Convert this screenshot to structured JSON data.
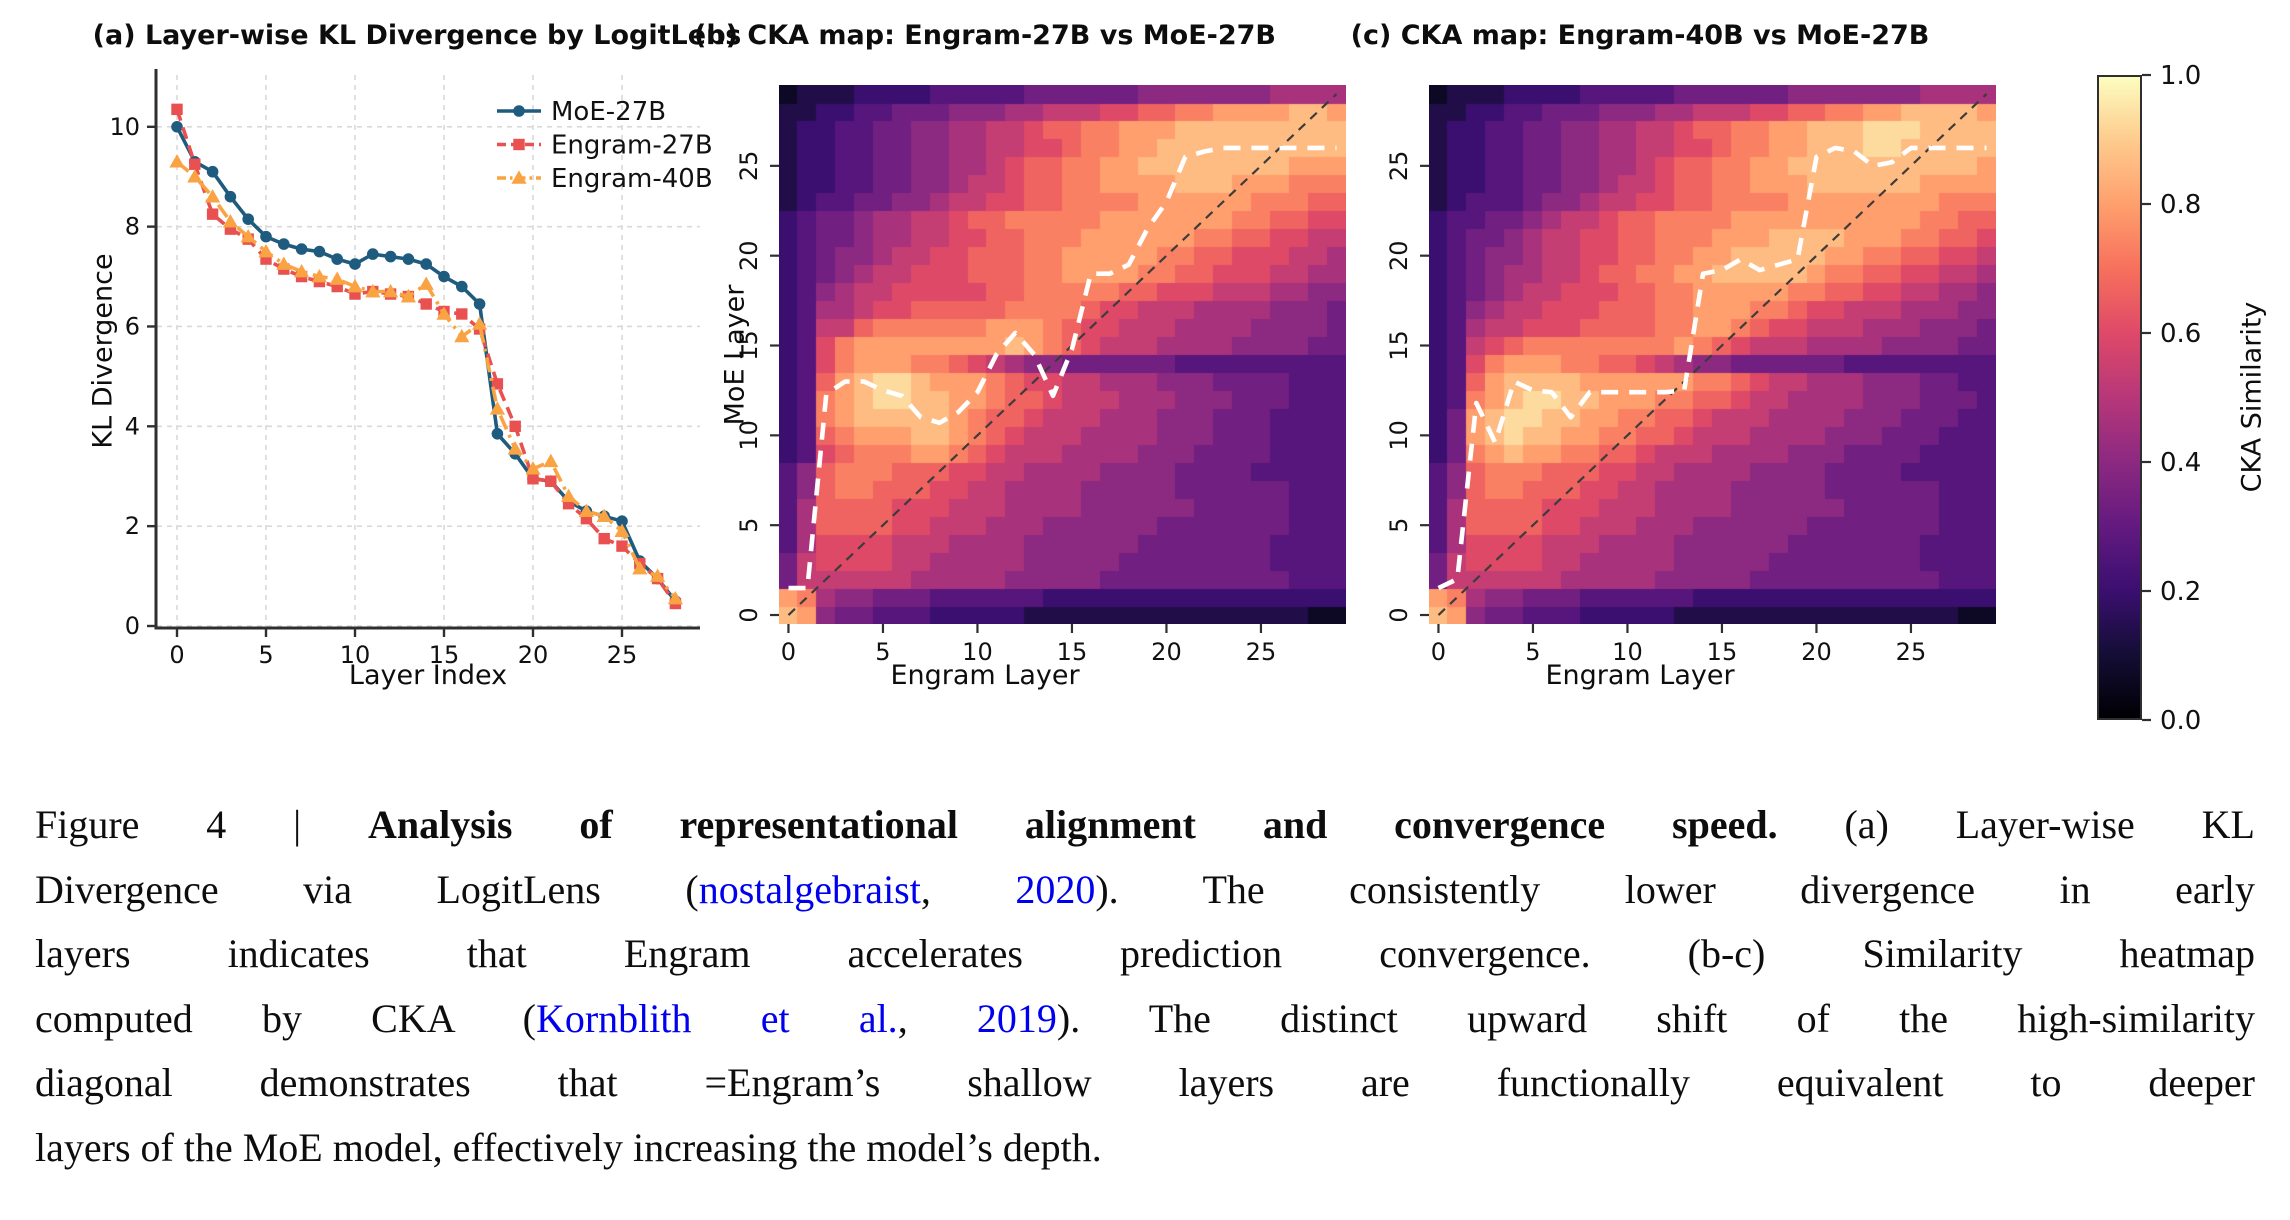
{
  "page": {
    "background": "#ffffff"
  },
  "chart_data": [
    {
      "id": "panel_a",
      "type": "line",
      "title": "(a) Layer-wise KL Divergence by LogitLens",
      "xlabel": "Layer Index",
      "ylabel": "KL Divergence",
      "x": [
        0,
        1,
        2,
        3,
        4,
        5,
        6,
        7,
        8,
        9,
        10,
        11,
        12,
        13,
        14,
        15,
        16,
        17,
        18,
        19,
        20,
        21,
        22,
        23,
        24,
        25,
        26,
        27,
        28
      ],
      "series": [
        {
          "name": "MoE-27B",
          "color": "#1E5B7E",
          "linestyle": "solid",
          "marker": "circle",
          "values": [
            10.0,
            9.3,
            9.1,
            8.6,
            8.15,
            7.8,
            7.65,
            7.55,
            7.5,
            7.35,
            7.25,
            7.45,
            7.4,
            7.35,
            7.25,
            7.0,
            6.8,
            6.45,
            3.85,
            3.45,
            2.95,
            2.9,
            2.5,
            2.3,
            2.2,
            2.1,
            1.3,
            0.95,
            0.5
          ]
        },
        {
          "name": "Engram-27B",
          "color": "#E8514F",
          "linestyle": "dashed",
          "marker": "square",
          "values": [
            10.35,
            9.25,
            8.25,
            7.95,
            7.75,
            7.35,
            7.15,
            7.0,
            6.9,
            6.8,
            6.65,
            6.7,
            6.65,
            6.6,
            6.45,
            6.3,
            6.25,
            5.95,
            4.85,
            4.0,
            2.95,
            2.9,
            2.45,
            2.15,
            1.75,
            1.6,
            1.25,
            0.95,
            0.45
          ]
        },
        {
          "name": "Engram-40B",
          "color": "#F9A342",
          "linestyle": "dashdot",
          "marker": "triangle",
          "values": [
            9.3,
            9.0,
            8.6,
            8.1,
            7.8,
            7.5,
            7.25,
            7.1,
            7.0,
            6.95,
            6.8,
            6.7,
            6.7,
            6.6,
            6.85,
            6.25,
            5.8,
            6.05,
            4.35,
            3.55,
            3.15,
            3.3,
            2.6,
            2.3,
            2.2,
            1.9,
            1.15,
            1.0,
            0.55
          ]
        }
      ],
      "xticks": [
        0,
        5,
        10,
        15,
        20,
        25
      ],
      "yticks": [
        0,
        2,
        4,
        6,
        8,
        10
      ],
      "xlim": [
        -1.2,
        29.4
      ],
      "ylim": [
        0,
        11.05
      ],
      "grid": true,
      "legend_position": "upper right"
    },
    {
      "id": "panel_b",
      "type": "heatmap",
      "title": "(b) CKA map: Engram-27B vs MoE-27B",
      "xlabel": "Engram Layer",
      "ylabel": "MoE Layer",
      "n_x": 30,
      "n_y": 30,
      "xticks": [
        0,
        5,
        10,
        15,
        20,
        25
      ],
      "yticks": [
        0,
        5,
        10,
        15,
        20,
        25
      ],
      "value_encoding": "hex16: each char 0-F maps to CKA similarity 0.0-1.0; rows listed bottom (MoE layer 0) to top (MoE layer 29)",
      "rows_bottom_to_top": [
        "DC6554443333322222222222222211",
        "CB7665554444443333333333333333",
        "588888877777666665555555555444",
        "589999887777766666555555554444",
        "479999888777766666655555554444",
        "47AAAA998887776666665555555444",
        "47AAAA999888777766666655555444",
        "46ABBAAA9988777766666555555444",
        "46ABBBAAA998877776666555544444",
        "349ABBBCCBA9888777766655554444",
        "34ABCCCDDCBA988877776665554444",
        "34BCDDDDDCBAA98887776665554444",
        "34BCDEEDDCCBAA9888777666555444",
        "34ACDEEDCCCBA99887776665555444",
        "349BCCCBBA98766555555444444444",
        "349BCCCCCCCCDCBA98887777666655",
        "3488ABBBBBBCCCBA99888777766665",
        "3477899AAAAABBBBA9988877776665",
        "34678899999AABBBBBAA9998887766",
        "3456788999AAABBCCCCBBAA9998877",
        "3456678899AAABBCCCCCBBAA999887",
        "34556778899AABBBCCCCCCBBAA9988",
        "3455677889AABBBBBCCCCCCCBBAA99",
        "2344556678899AABBBBCCCCCCBBBAA",
        "2334455667889AABBCCCCDDDCCCBBB",
        "2334455667789AABBCCDDDDDDDDCCC",
        "233445566778899ABBCCDDDDDDDDDD",
        "23344556677889AABBCCCDDDDDDDDD",
        "2233445556667788899AABBCCCCDDC",
        "122233334444455555566666667777"
      ],
      "argmax_trace_moe_layer_by_engram_layer": [
        1.5,
        1.5,
        12.3,
        13,
        13,
        12.5,
        12.2,
        11,
        10.7,
        11.3,
        12.4,
        14.5,
        15.7,
        14.5,
        12.2,
        14.8,
        19,
        19,
        19.5,
        21.5,
        23,
        25.5,
        25.8,
        26,
        26,
        26,
        26,
        26,
        26,
        26
      ],
      "diagonal_reference_line": true
    },
    {
      "id": "panel_c",
      "type": "heatmap",
      "title": "(c) CKA map: Engram-40B vs MoE-27B",
      "xlabel": "Engram Layer",
      "ylabel": "MoE Layer",
      "n_x": 30,
      "n_y": 30,
      "xticks": [
        0,
        5,
        10,
        15,
        20,
        25
      ],
      "yticks": [
        0,
        5,
        10,
        15,
        20,
        25
      ],
      "value_encoding": "hex16: each char 0-F maps to CKA similarity 0.0-1.0; rows listed bottom (MoE layer 0) to top (MoE layer 29)",
      "rows_bottom_to_top": [
        "DC6554443333322222222222222211",
        "CB7665554444443333333333333333",
        "588888877777666665555555555444",
        "589999887777766666555555554444",
        "479999888777766666655555554444",
        "47AAAA998887776666665555555444",
        "47AAAA999888777766666655555444",
        "46ABBAAA9988777766666555555444",
        "46ABBBAAA998877776666555544444",
        "35BCDCCBBAA9888777766655554444",
        "35CDEDDCCBBAA98887777666555444",
        "35CDEEDDCCBBAA9888777766655544",
        "34BCDEEDDCCCBBAA98877776665554",
        "34ACDDDDCCCCCCBBA9887776665544",
        "349BCCCBBAA9876655555544444444",
        "3489ABBBBBBBBCBA98887777666655",
        "34788999AAAABBCCBA998887776665",
        "346788999AAABBCCCBBA9988877766",
        "3456788999AABBCCCCCBBAA9988776",
        "345677889AABBCCDDDDDCBBAA99887",
        "3456678899AABBCCDDDDDCCBBAA998",
        "3455678899AABBBCCCDDDDCCCBBAA9",
        "3445567889AABBBBCCCCCCCCCCBBAA",
        "2344456678899AABBBBCCCCCCCCBBB",
        "2334455667889AABBCCCDDDDDDCCCC",
        "2334455667789AABBCCDDDDDDDDDDC",
        "233445566778899ABBCCDDDEEDDDDD",
        "23344556677889AABBCCDDDEEEDDDD",
        "2233445556667788899AABBCCDDDDC",
        "122233334444455555566666667777"
      ],
      "argmax_trace_moe_layer_by_engram_layer": [
        1.5,
        2,
        11.8,
        9.6,
        13,
        12.5,
        12.4,
        11,
        12.4,
        12.4,
        12.4,
        12.4,
        12.4,
        12.5,
        19,
        19.2,
        19.8,
        19.2,
        19.5,
        19.8,
        25.5,
        26,
        25.8,
        25,
        25.2,
        26,
        26,
        26,
        26,
        26
      ],
      "diagonal_reference_line": true
    },
    {
      "id": "colorbar",
      "type": "colorbar",
      "label": "CKA Similarity",
      "ticks": [
        0.0,
        0.2,
        0.4,
        0.6,
        0.8,
        1.0
      ],
      "range": [
        0.0,
        1.0
      ],
      "colormap": "magma",
      "stops": [
        "#000004",
        "#140E36",
        "#3B0F70",
        "#641A80",
        "#8C2981",
        "#B73779",
        "#DE4968",
        "#F7705C",
        "#FE9F6D",
        "#FECA8D",
        "#FCFDBF"
      ]
    }
  ],
  "caption": {
    "link_color": "#0000EE",
    "lines": [
      {
        "align": "justify",
        "segments": [
          {
            "text": "Figure 4 | ",
            "style": "regular"
          },
          {
            "text": "Analysis of representational alignment and convergence speed.",
            "style": "bold"
          },
          {
            "text": " (a) Layer-wise KL",
            "style": "regular"
          }
        ]
      },
      {
        "align": "justify",
        "segments": [
          {
            "text": "Divergence via LogitLens (",
            "style": "regular"
          },
          {
            "text": "nostalgebraist",
            "style": "link"
          },
          {
            "text": ", ",
            "style": "regular"
          },
          {
            "text": "2020",
            "style": "link"
          },
          {
            "text": "). The consistently lower divergence in early",
            "style": "regular"
          }
        ]
      },
      {
        "align": "justify",
        "segments": [
          {
            "text": "layers indicates that Engram accelerates prediction convergence. (b-c) Similarity heatmap",
            "style": "regular"
          }
        ]
      },
      {
        "align": "justify",
        "segments": [
          {
            "text": "computed by CKA (",
            "style": "regular"
          },
          {
            "text": "Kornblith et al.",
            "style": "link"
          },
          {
            "text": ", ",
            "style": "regular"
          },
          {
            "text": "2019",
            "style": "link"
          },
          {
            "text": "). The distinct upward shift of the high-similarity",
            "style": "regular"
          }
        ]
      },
      {
        "align": "justify",
        "segments": [
          {
            "text": "diagonal demonstrates that =Engram’s shallow layers are functionally equivalent to deeper",
            "style": "regular"
          }
        ]
      },
      {
        "align": "left",
        "segments": [
          {
            "text": "layers of the MoE model, effectively increasing the model’s depth.",
            "style": "regular"
          }
        ]
      }
    ]
  }
}
